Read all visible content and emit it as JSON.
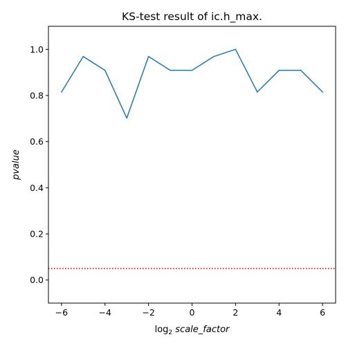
{
  "chart_data": {
    "type": "line",
    "title": "KS-test result of ic.h_max.",
    "xlabel_prefix": "log",
    "xlabel_sub": "2",
    "xlabel_var": "scale_factor",
    "ylabel": "pvalue",
    "xlim": [
      -6.6,
      6.6
    ],
    "ylim": [
      -0.1,
      1.1
    ],
    "xticks": [
      -6,
      -4,
      -2,
      0,
      2,
      4,
      6
    ],
    "yticks": [
      0.0,
      0.2,
      0.4,
      0.6,
      0.8,
      1.0
    ],
    "xtick_labels": [
      "−6",
      "−4",
      "−2",
      "0",
      "2",
      "4",
      "6"
    ],
    "ytick_labels": [
      "0.0",
      "0.2",
      "0.4",
      "0.6",
      "0.8",
      "1.0"
    ],
    "x": [
      -6,
      -5,
      -4,
      -3,
      -2,
      -1,
      0,
      1,
      2,
      3,
      4,
      5,
      6
    ],
    "series": [
      {
        "values": [
          0.815,
          0.969,
          0.909,
          0.702,
          0.969,
          0.909,
          0.909,
          0.969,
          1.0,
          0.815,
          0.909,
          0.909,
          0.815
        ],
        "color": "#1f77b4"
      }
    ],
    "reference_line": {
      "y": 0.05,
      "style": "dotted",
      "color": "#ff0000"
    },
    "grid": false,
    "legend": "none"
  }
}
